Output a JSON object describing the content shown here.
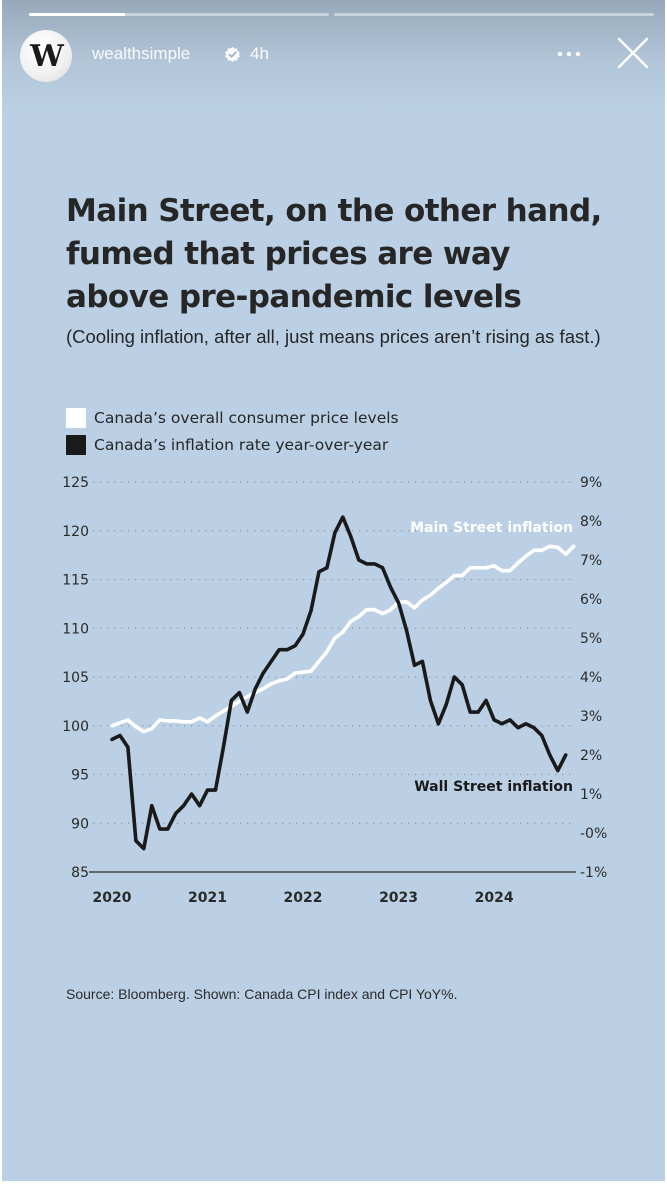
{
  "story": {
    "progress_segments": [
      {
        "label": "segment-1",
        "progress": 0.32
      },
      {
        "label": "segment-2",
        "progress": 0
      }
    ],
    "account": {
      "avatar_letter": "W",
      "username": "wealthsimple",
      "verified": true,
      "time_ago": "4h"
    },
    "icons": {
      "more": "more-options-icon",
      "close": "close-icon",
      "verified": "verified-badge-icon"
    },
    "background_color": "#bbd0e4"
  },
  "post": {
    "title_lines": [
      "Main Street, on the other hand,",
      "fumed that prices are way",
      "above pre-pandemic levels"
    ],
    "subtitle": "(Cooling inflation, after all, just means prices aren’t rising as fast.)",
    "source": "Source: Bloomberg. Shown: Canada CPI index and CPI YoY%."
  },
  "chart_data": {
    "type": "line",
    "title": "Main Street, on the other hand, fumed that prices are way above pre-pandemic levels",
    "subtitle": "(Cooling inflation, after all, just means prices aren’t rising as fast.)",
    "xlabel": "",
    "ylabel_left": "",
    "ylabel_right": "",
    "x_ticks": [
      "2020",
      "2021",
      "2022",
      "2023",
      "2024"
    ],
    "y_left_ticks": [
      "125",
      "120",
      "115",
      "110",
      "105",
      "100",
      "95",
      "90",
      "85"
    ],
    "y_left_range": [
      85,
      125
    ],
    "y_right_ticks": [
      "9%",
      "8%",
      "7%",
      "6%",
      "5%",
      "4%",
      "3%",
      "2%",
      "1%",
      "-0%",
      "-1%"
    ],
    "y_right_range": [
      -1,
      9
    ],
    "grid": "horizontal-dotted",
    "legend": {
      "placement": "top-left",
      "entries": [
        {
          "label": "Canada’s overall consumer price levels",
          "color": "#ffffff"
        },
        {
          "label": "Canada’s inflation rate year-over-year",
          "color": "#1a1a1a"
        }
      ]
    },
    "x_start": "2020-01",
    "x_step": "month",
    "series": [
      {
        "name": "Canada’s overall consumer price levels",
        "axis": "left",
        "color": "#ffffff",
        "annotation": "Main Street inflation",
        "values": [
          100.0,
          100.3,
          100.6,
          99.9,
          99.4,
          99.7,
          100.6,
          100.5,
          100.5,
          100.4,
          100.4,
          100.8,
          100.4,
          101.0,
          101.5,
          102.0,
          102.5,
          103.0,
          103.4,
          103.8,
          104.3,
          104.6,
          104.8,
          105.4,
          105.5,
          105.6,
          106.6,
          107.6,
          109.0,
          109.6,
          110.7,
          111.2,
          111.9,
          111.9,
          111.5,
          111.9,
          112.7,
          112.7,
          112.1,
          112.9,
          113.4,
          114.1,
          114.7,
          115.4,
          115.4,
          116.2,
          116.2,
          116.2,
          116.4,
          115.9,
          115.9,
          116.7,
          117.4,
          118.0,
          118.0,
          118.4,
          118.3,
          117.6,
          118.4
        ]
      },
      {
        "name": "Canada’s inflation rate year-over-year",
        "axis": "right",
        "color": "#1a1a1a",
        "annotation": "Wall Street inflation",
        "values": [
          2.4,
          2.5,
          2.2,
          -0.2,
          -0.4,
          0.7,
          0.1,
          0.1,
          0.5,
          0.7,
          1.0,
          0.7,
          1.1,
          1.1,
          2.2,
          3.4,
          3.6,
          3.1,
          3.7,
          4.1,
          4.4,
          4.7,
          4.7,
          4.8,
          5.1,
          5.7,
          6.7,
          6.8,
          7.7,
          8.1,
          7.6,
          7.0,
          6.9,
          6.9,
          6.8,
          6.3,
          5.9,
          5.2,
          4.3,
          4.4,
          3.4,
          2.8,
          3.3,
          4.0,
          3.8,
          3.1,
          3.1,
          3.4,
          2.9,
          2.8,
          2.9,
          2.7,
          2.8,
          2.7,
          2.5,
          2.0,
          1.6,
          2.0
        ]
      }
    ],
    "annotations": [
      {
        "text": "Main Street inflation",
        "series": 0,
        "color": "#ffffff"
      },
      {
        "text": "Wall Street inflation",
        "series": 1,
        "color": "#1a1a1a"
      }
    ]
  }
}
